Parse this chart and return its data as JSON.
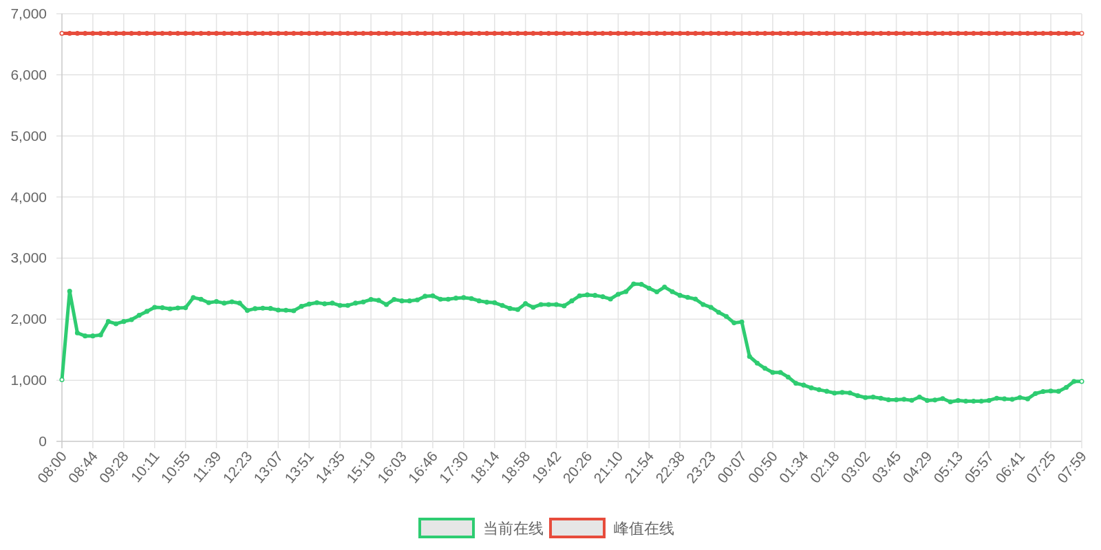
{
  "chart_data": {
    "type": "line",
    "categories": [
      "08:00",
      null,
      null,
      null,
      "08:44",
      null,
      null,
      null,
      "09:28",
      null,
      null,
      null,
      "10:11",
      null,
      null,
      null,
      "10:55",
      null,
      null,
      null,
      "11:39",
      null,
      null,
      null,
      "12:23",
      null,
      null,
      null,
      "13:07",
      null,
      null,
      null,
      "13:51",
      null,
      null,
      null,
      "14:35",
      null,
      null,
      null,
      "15:19",
      null,
      null,
      null,
      "16:03",
      null,
      null,
      null,
      "16:46",
      null,
      null,
      null,
      "17:30",
      null,
      null,
      null,
      "18:14",
      null,
      null,
      null,
      "18:58",
      null,
      null,
      null,
      "19:42",
      null,
      null,
      null,
      "20:26",
      null,
      null,
      null,
      "21:10",
      null,
      null,
      null,
      "21:54",
      null,
      null,
      null,
      "22:38",
      null,
      null,
      null,
      "23:23",
      null,
      null,
      null,
      "00:07",
      null,
      null,
      null,
      "00:50",
      null,
      null,
      null,
      "01:34",
      null,
      null,
      null,
      "02:18",
      null,
      null,
      null,
      "03:02",
      null,
      null,
      null,
      "03:45",
      null,
      null,
      null,
      "04:29",
      null,
      null,
      null,
      "05:13",
      null,
      null,
      null,
      "05:57",
      null,
      null,
      null,
      "06:41",
      null,
      null,
      null,
      "07:25",
      null,
      null,
      null,
      "07:59"
    ],
    "series": [
      {
        "name": "当前在线",
        "color": "#2ecc71",
        "values": [
          1010,
          2458,
          1775,
          1726,
          1726,
          1741,
          1962,
          1925,
          1962,
          1992,
          2064,
          2128,
          2195,
          2188,
          2169,
          2184,
          2188,
          2353,
          2327,
          2270,
          2289,
          2263,
          2285,
          2263,
          2143,
          2173,
          2180,
          2176,
          2150,
          2146,
          2139,
          2210,
          2248,
          2270,
          2252,
          2263,
          2225,
          2225,
          2263,
          2282,
          2323,
          2308,
          2240,
          2323,
          2300,
          2300,
          2315,
          2376,
          2383,
          2327,
          2327,
          2345,
          2353,
          2338,
          2300,
          2278,
          2270,
          2225,
          2176,
          2158,
          2255,
          2195,
          2240,
          2240,
          2240,
          2218,
          2300,
          2383,
          2398,
          2390,
          2368,
          2330,
          2409,
          2451,
          2578,
          2571,
          2507,
          2447,
          2526,
          2451,
          2390,
          2357,
          2330,
          2240,
          2195,
          2113,
          2045,
          1940,
          1955,
          1390,
          1280,
          1195,
          1128,
          1128,
          1053,
          951,
          921,
          876,
          846,
          820,
          790,
          801,
          793,
          748,
          718,
          726,
          707,
          681,
          681,
          688,
          673,
          726,
          670,
          677,
          700,
          647,
          670,
          658,
          658,
          658,
          670,
          707,
          696,
          688,
          718,
          696,
          782,
          816,
          824,
          820,
          883,
          981,
          981
        ]
      },
      {
        "name": "峰值在线",
        "color": "#e74c3c",
        "values": [
          6680,
          6680,
          6680,
          6680,
          6680,
          6680,
          6680,
          6680,
          6680,
          6680,
          6680,
          6680,
          6680,
          6680,
          6680,
          6680,
          6680,
          6680,
          6680,
          6680,
          6680,
          6680,
          6680,
          6680,
          6680,
          6680,
          6680,
          6680,
          6680,
          6680,
          6680,
          6680,
          6680,
          6680,
          6680,
          6680,
          6680,
          6680,
          6680,
          6680,
          6680,
          6680,
          6680,
          6680,
          6680,
          6680,
          6680,
          6680,
          6680,
          6680,
          6680,
          6680,
          6680,
          6680,
          6680,
          6680,
          6680,
          6680,
          6680,
          6680,
          6680,
          6680,
          6680,
          6680,
          6680,
          6680,
          6680,
          6680,
          6680,
          6680,
          6680,
          6680,
          6680,
          6680,
          6680,
          6680,
          6680,
          6680,
          6680,
          6680,
          6680,
          6680,
          6680,
          6680,
          6680,
          6680,
          6680,
          6680,
          6680,
          6680,
          6680,
          6680,
          6680,
          6680,
          6680,
          6680,
          6680,
          6680,
          6680,
          6680,
          6680,
          6680,
          6680,
          6680,
          6680,
          6680,
          6680,
          6680,
          6680,
          6680,
          6680,
          6680,
          6680,
          6680,
          6680,
          6680,
          6680,
          6680,
          6680,
          6680,
          6680,
          6680,
          6680,
          6680,
          6680,
          6680,
          6680,
          6680,
          6680,
          6680,
          6680,
          6680,
          6680
        ]
      }
    ],
    "ylim": [
      0,
      7000
    ],
    "yticks": [
      0,
      {
        "value": 1000,
        "label": "1,000"
      },
      {
        "value": 2000,
        "label": "2,000"
      },
      {
        "value": 3000,
        "label": "3,000"
      },
      {
        "value": 4000,
        "label": "4,000"
      },
      {
        "value": 5000,
        "label": "5,000"
      },
      {
        "value": 6000,
        "label": "6,000"
      },
      {
        "value": 7000,
        "label": "7,000"
      }
    ],
    "grid": true,
    "legend": "bottom",
    "marker": "circle",
    "line_style": "solid"
  }
}
